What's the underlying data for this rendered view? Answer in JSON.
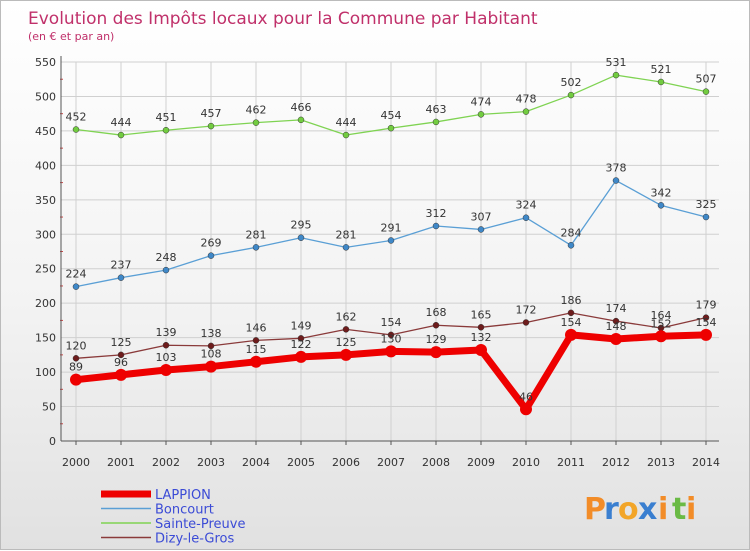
{
  "chart_data": {
    "type": "line",
    "title": "Evolution des Impôts locaux pour la Commune par Habitant",
    "subtitle": "(en € et par an)",
    "xlabel": "",
    "ylabel": "",
    "ylim": [
      0,
      550
    ],
    "yticks": [
      0,
      50,
      100,
      150,
      200,
      250,
      300,
      350,
      400,
      450,
      500,
      550
    ],
    "grid": true,
    "legend_position": "bottom-left",
    "categories": [
      "2000",
      "2001",
      "2002",
      "2003",
      "2004",
      "2005",
      "2006",
      "2007",
      "2008",
      "2009",
      "2010",
      "2011",
      "2012",
      "2013",
      "2014"
    ],
    "series": [
      {
        "name": "Sainte-Preuve",
        "color": "#7fd352",
        "marker_color": "#72cc40",
        "values": [
          452,
          444,
          451,
          457,
          462,
          466,
          444,
          454,
          463,
          474,
          478,
          502,
          531,
          521,
          507
        ]
      },
      {
        "name": "Boncourt",
        "color": "#5a9fd5",
        "marker_color": "#3f88c8",
        "values": [
          224,
          237,
          248,
          269,
          281,
          295,
          281,
          291,
          312,
          307,
          324,
          284,
          378,
          342,
          325
        ]
      },
      {
        "name": "Dizy-le-Gros",
        "color": "#8a3a3a",
        "marker_color": "#6e1c1c",
        "values": [
          120,
          125,
          139,
          138,
          146,
          149,
          162,
          154,
          168,
          165,
          172,
          186,
          174,
          164,
          179
        ]
      },
      {
        "name": "LAPPION",
        "color": "#ee0000",
        "marker_color": "#ee0000",
        "values": [
          89,
          96,
          103,
          108,
          115,
          122,
          125,
          130,
          129,
          132,
          46,
          154,
          148,
          152,
          154
        ]
      }
    ]
  },
  "legend": {
    "items": [
      "LAPPION",
      "Boncourt",
      "Sainte-Preuve",
      "Dizy-le-Gros"
    ]
  },
  "brand": {
    "letters": [
      "P",
      "r",
      "o",
      "x",
      "i",
      "t",
      "i"
    ],
    "colors": [
      "#f28c28",
      "#3a7fd0",
      "#f2a528",
      "#3a7fd0",
      "#f28c28",
      "#6aba45",
      "#f28c28"
    ]
  }
}
